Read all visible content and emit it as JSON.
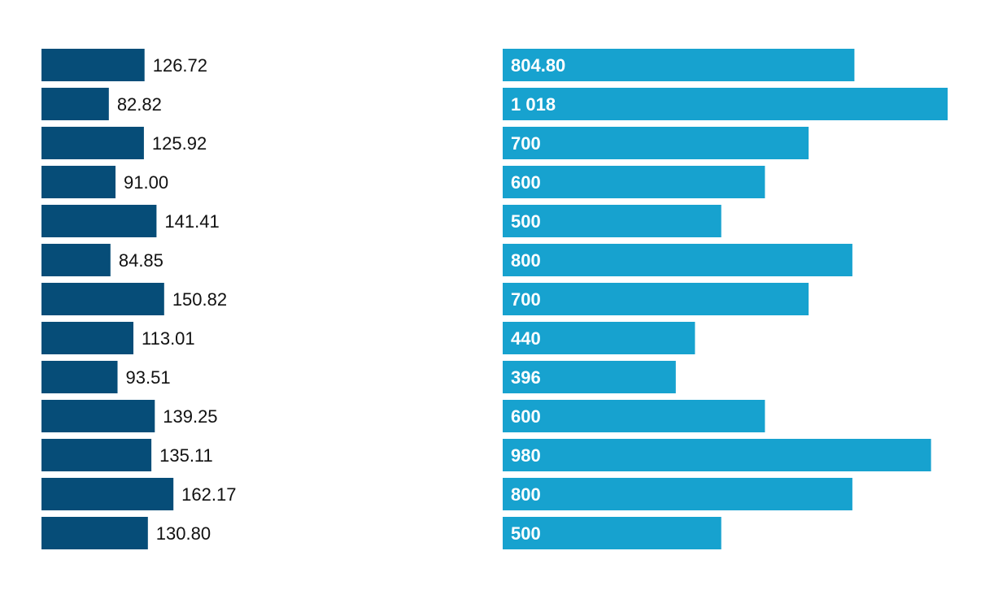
{
  "chart_data": [
    {
      "type": "bar",
      "orientation": "horizontal",
      "color": "#064d78",
      "label_color": "#111111",
      "xlim": [
        0,
        190
      ],
      "values": [
        126.72,
        82.82,
        125.92,
        91.0,
        141.41,
        84.85,
        150.82,
        113.01,
        93.51,
        139.25,
        135.11,
        162.17,
        130.8
      ],
      "labels": [
        "126.72",
        "82.82",
        "125.92",
        "91.00",
        "141.41",
        "84.85",
        "150.82",
        "113.01",
        "93.51",
        "139.25",
        "135.11",
        "162.17",
        "130.80"
      ],
      "grid": false,
      "legend": "none"
    },
    {
      "type": "bar",
      "orientation": "horizontal",
      "color": "#17a2cf",
      "label_color": "#ffffff",
      "xlim": [
        0,
        1018
      ],
      "values": [
        804.8,
        1018,
        700,
        600,
        500,
        800,
        700,
        440,
        396,
        600,
        980,
        800,
        500
      ],
      "labels": [
        "804.80",
        "1 018",
        "700",
        "600",
        "500",
        "800",
        "700",
        "440",
        "396",
        "600",
        "980",
        "800",
        "500"
      ],
      "grid": false,
      "legend": "none"
    }
  ]
}
